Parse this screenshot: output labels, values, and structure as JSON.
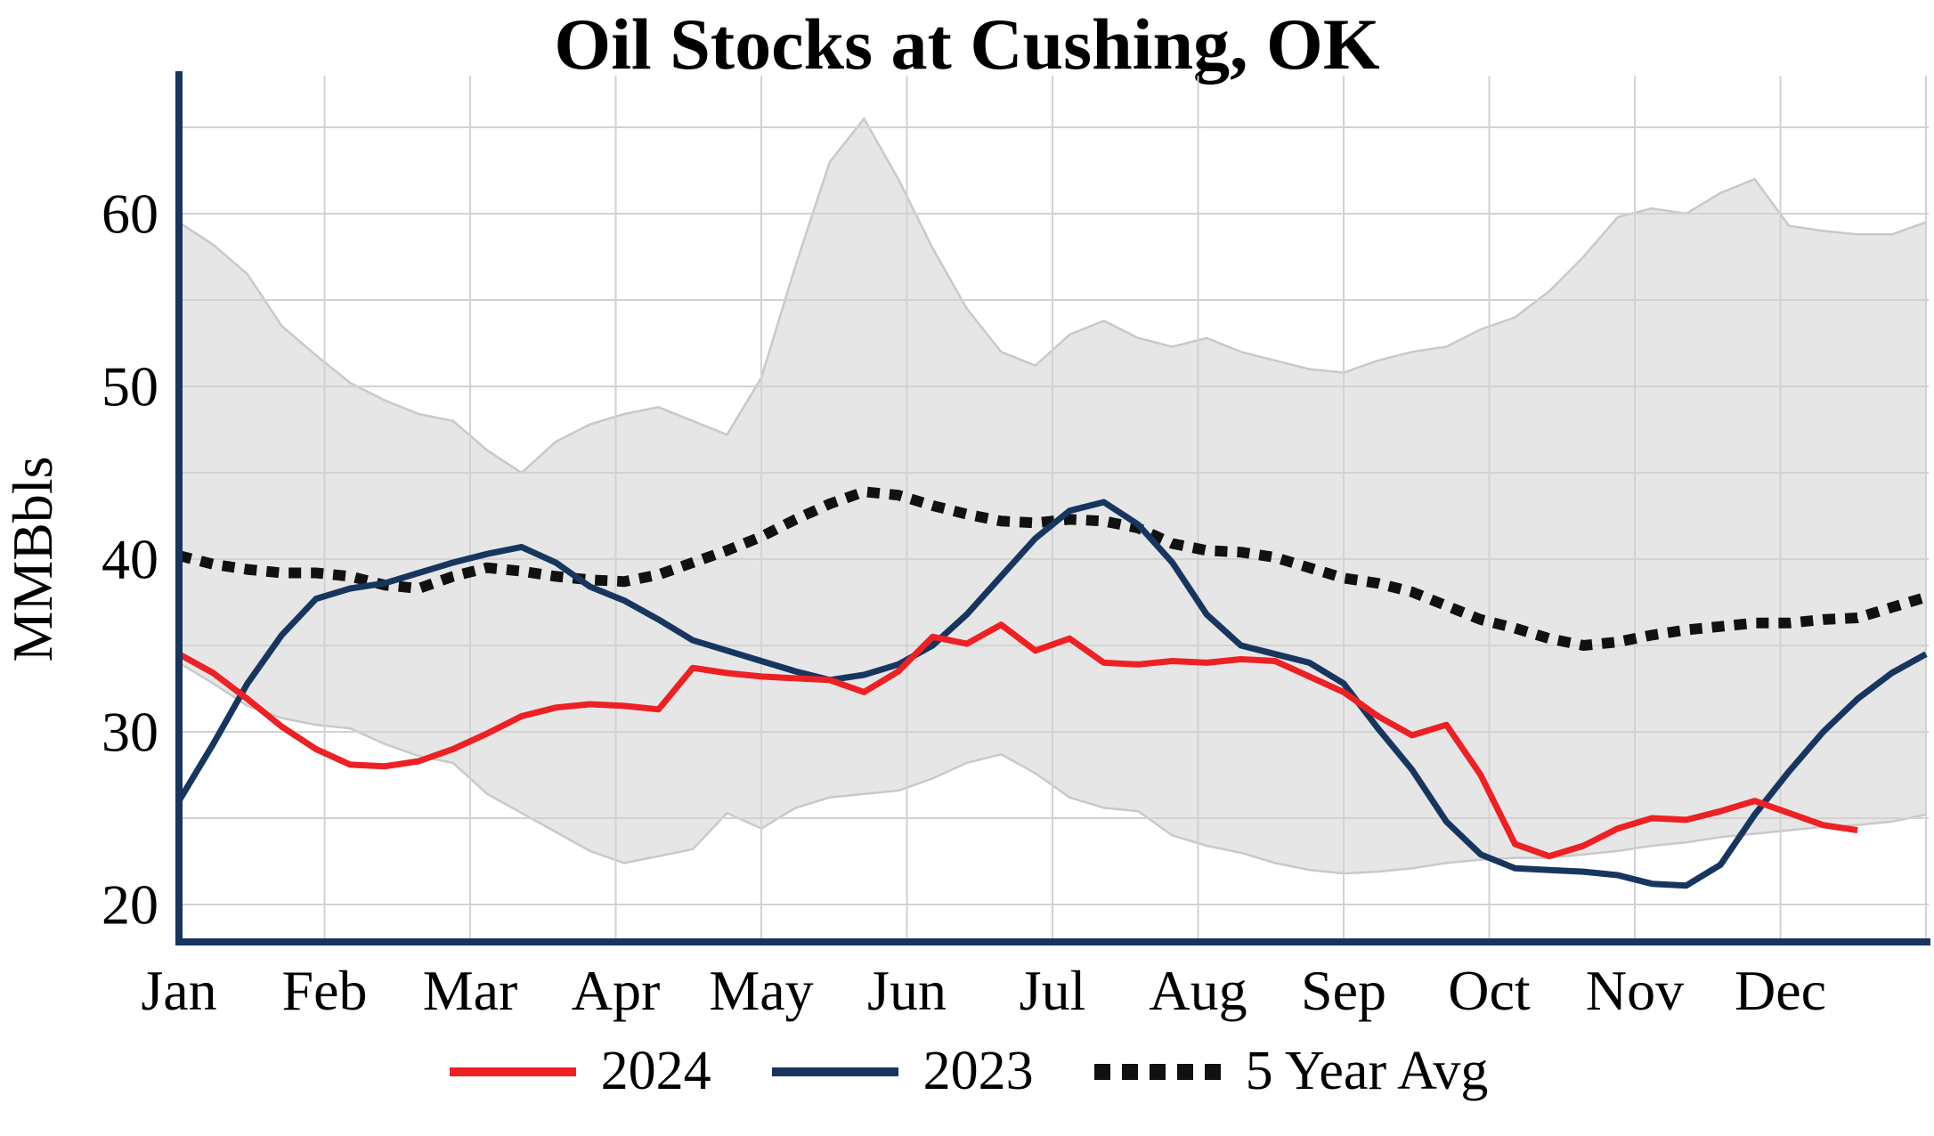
{
  "chart_data": {
    "type": "line",
    "title": "Oil Stocks at Cushing, OK",
    "ylabel": "MMBbls",
    "x_tick_labels": [
      "Jan",
      "Feb",
      "Mar",
      "Apr",
      "May",
      "Jun",
      "Jul",
      "Aug",
      "Sep",
      "Oct",
      "Nov",
      "Dec"
    ],
    "y_ticks": [
      20,
      30,
      40,
      50,
      60
    ],
    "y_gridlines": [
      20,
      25,
      30,
      35,
      40,
      45,
      50,
      55,
      60,
      65
    ],
    "xlim": [
      0,
      12
    ],
    "ylim": [
      18.4,
      67.9
    ],
    "grid": true,
    "legend_position": "bottom",
    "frequency": "weekly",
    "colors": {
      "axis": "#17365f",
      "grid": "#d2d2d2",
      "text": "#000000"
    },
    "band": {
      "fill": "#e6e6e6",
      "edge": "#c9c9c9",
      "upper": [
        59.5,
        58.2,
        56.5,
        53.5,
        51.8,
        50.2,
        49.2,
        48.4,
        48.0,
        46.3,
        45.0,
        46.8,
        47.8,
        48.4,
        48.8,
        48.0,
        47.2,
        50.5,
        57.0,
        63.0,
        65.5,
        62.0,
        58.0,
        54.5,
        52.0,
        51.2,
        53.0,
        53.8,
        52.8,
        52.3,
        52.8,
        52.0,
        51.5,
        51.0,
        50.8,
        51.5,
        52.0,
        52.3,
        53.3,
        54.0,
        55.5,
        57.5,
        59.8,
        60.3,
        60.0,
        61.2,
        62.0,
        59.3,
        59.0,
        58.8,
        58.8,
        59.5
      ],
      "lower": [
        34.0,
        32.8,
        31.5,
        30.8,
        30.4,
        30.2,
        29.3,
        28.6,
        28.2,
        26.4,
        25.3,
        24.2,
        23.1,
        22.4,
        22.8,
        23.2,
        25.3,
        24.4,
        25.6,
        26.2,
        26.4,
        26.6,
        27.3,
        28.2,
        28.7,
        27.6,
        26.2,
        25.6,
        25.4,
        24.0,
        23.4,
        23.0,
        22.4,
        22.0,
        21.8,
        21.9,
        22.1,
        22.4,
        22.6,
        22.7,
        22.7,
        22.9,
        23.1,
        23.4,
        23.6,
        23.9,
        24.1,
        24.3,
        24.5,
        24.6,
        24.8,
        25.2
      ]
    },
    "series": [
      {
        "name": "2024",
        "color": "#ed2124",
        "style": "solid",
        "values": [
          34.5,
          33.4,
          31.9,
          30.3,
          29.0,
          28.1,
          28.0,
          28.3,
          29.0,
          29.9,
          30.9,
          31.4,
          31.6,
          31.5,
          31.3,
          33.7,
          33.4,
          33.2,
          33.1,
          33.0,
          32.3,
          33.5,
          35.5,
          35.1,
          36.2,
          34.7,
          35.4,
          34.0,
          33.9,
          34.1,
          34.0,
          34.2,
          34.1,
          33.2,
          32.3,
          30.9,
          29.8,
          30.4,
          27.5,
          23.5,
          22.8,
          23.4,
          24.4,
          25.0,
          24.9,
          25.4,
          26.0,
          25.3,
          24.6,
          24.3
        ]
      },
      {
        "name": "2023",
        "color": "#17365f",
        "style": "solid",
        "values": [
          26.0,
          29.3,
          32.8,
          35.6,
          37.7,
          38.3,
          38.6,
          39.2,
          39.8,
          40.3,
          40.7,
          39.8,
          38.4,
          37.6,
          36.5,
          35.3,
          34.7,
          34.1,
          33.5,
          33.0,
          33.3,
          33.9,
          35.0,
          36.8,
          39.0,
          41.2,
          42.8,
          43.3,
          42.0,
          39.8,
          36.8,
          35.0,
          34.5,
          34.0,
          32.8,
          30.2,
          27.8,
          24.8,
          22.9,
          22.1,
          22.0,
          21.9,
          21.7,
          21.2,
          21.1,
          22.3,
          25.2,
          27.7,
          30.0,
          31.9,
          33.4,
          34.5
        ]
      },
      {
        "name": "5 Year Avg",
        "color": "#111111",
        "style": "dotted",
        "values": [
          40.2,
          39.7,
          39.4,
          39.2,
          39.2,
          39.0,
          38.5,
          38.3,
          39.0,
          39.5,
          39.3,
          39.0,
          38.8,
          38.7,
          39.1,
          39.8,
          40.5,
          41.3,
          42.3,
          43.2,
          43.9,
          43.7,
          43.1,
          42.6,
          42.2,
          42.1,
          42.3,
          42.2,
          41.8,
          40.9,
          40.5,
          40.4,
          40.1,
          39.5,
          38.9,
          38.6,
          38.1,
          37.3,
          36.5,
          36.0,
          35.4,
          35.0,
          35.2,
          35.6,
          35.9,
          36.1,
          36.3,
          36.3,
          36.5,
          36.6,
          37.2,
          37.8
        ]
      }
    ]
  }
}
